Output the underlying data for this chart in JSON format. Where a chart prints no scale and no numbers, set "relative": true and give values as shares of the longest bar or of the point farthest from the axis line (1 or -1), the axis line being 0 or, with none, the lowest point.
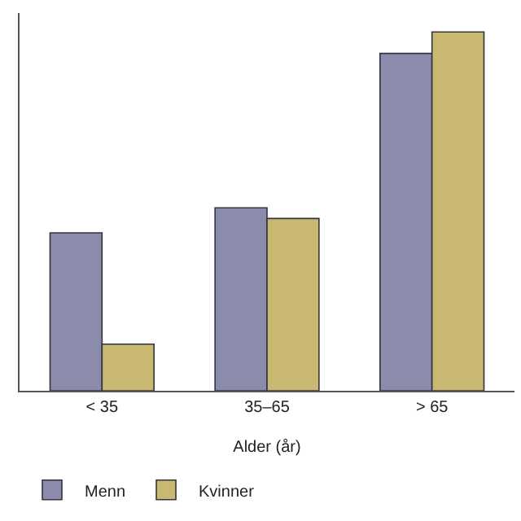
{
  "chart_data": {
    "type": "bar",
    "xlabel": "Alder (år)",
    "categories": [
      "< 35",
      "35–65",
      "> 65"
    ],
    "relative": true,
    "legend": "bottom left",
    "series": [
      {
        "name": "Menn",
        "color": "#8b8bab",
        "values": [
          0.44,
          0.51,
          0.94
        ]
      },
      {
        "name": "Kvinner",
        "color": "#c8b870",
        "values": [
          0.13,
          0.48,
          1
        ]
      }
    ]
  }
}
